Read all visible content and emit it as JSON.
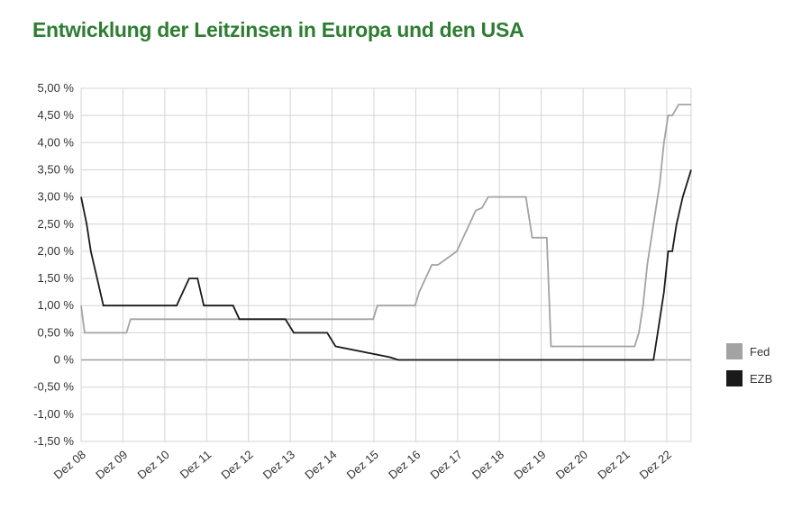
{
  "chart_data": {
    "type": "line",
    "title": "Entwicklung der Leitzinsen in Europa und den USA",
    "xlabel": "",
    "ylabel": "",
    "x_range": [
      2008.917,
      2023.5
    ],
    "ylim": [
      -1.5,
      5.0
    ],
    "y_tick_values": [
      5.0,
      4.5,
      4.0,
      3.5,
      3.0,
      2.5,
      2.0,
      1.5,
      1.0,
      0.5,
      0.0,
      -0.5,
      -1.0,
      -1.5
    ],
    "y_tick_labels": [
      "5,00 %",
      "4,50 %",
      "4,00 %",
      "3,50 %",
      "3,00 %",
      "2,50 %",
      "2,00 %",
      "1,50 %",
      "1,00 %",
      "0,50 %",
      "0 %",
      "-0,50 %",
      "-1,00 %",
      "-1,50 %"
    ],
    "x_tick_values": [
      2008.917,
      2009.917,
      2010.917,
      2011.917,
      2012.917,
      2013.917,
      2014.917,
      2015.917,
      2016.917,
      2017.917,
      2018.917,
      2019.917,
      2020.917,
      2021.917,
      2022.917
    ],
    "x_tick_labels": [
      "Dez 08",
      "Dez 09",
      "Dez 10",
      "Dez 11",
      "Dez 12",
      "Dez 13",
      "Dez 14",
      "Dez 15",
      "Dez 16",
      "Dez 17",
      "Dez 18",
      "Dez 19",
      "Dez 20",
      "Dez 21",
      "Dez 22"
    ],
    "grid": true,
    "legend_position": "right",
    "series": [
      {
        "name": "Fed",
        "color": "#a3a3a3",
        "x": [
          2008.917,
          2009.0,
          2010.0,
          2010.1,
          2015.9,
          2016.0,
          2016.9,
          2017.0,
          2017.15,
          2017.3,
          2017.45,
          2017.9,
          2018.05,
          2018.2,
          2018.35,
          2018.5,
          2018.65,
          2018.9,
          2019.05,
          2019.55,
          2019.7,
          2019.85,
          2020.05,
          2020.15,
          2022.15,
          2022.25,
          2022.35,
          2022.45,
          2022.6,
          2022.75,
          2022.85,
          2022.95,
          2023.05,
          2023.2,
          2023.35,
          2023.5
        ],
        "y": [
          1.0,
          0.5,
          0.5,
          0.75,
          0.75,
          1.0,
          1.0,
          1.25,
          1.5,
          1.75,
          1.75,
          2.0,
          2.25,
          2.5,
          2.75,
          2.8,
          3.0,
          3.0,
          3.0,
          3.0,
          2.25,
          2.25,
          2.25,
          0.25,
          0.25,
          0.5,
          1.0,
          1.75,
          2.5,
          3.25,
          4.0,
          4.5,
          4.5,
          4.7,
          4.7,
          4.7
        ],
        "values": [
          1.0,
          0.5,
          0.5,
          0.75,
          0.75,
          1.0,
          1.0,
          1.25,
          1.5,
          1.75,
          1.75,
          2.0,
          2.25,
          2.5,
          2.75,
          2.8,
          3.0,
          3.0,
          3.0,
          3.0,
          2.25,
          2.25,
          2.25,
          0.25,
          0.25,
          0.5,
          1.0,
          1.75,
          2.5,
          3.25,
          4.0,
          4.5,
          4.5,
          4.7,
          4.7,
          4.7
        ]
      },
      {
        "name": "EZB",
        "color": "#1a1a1a",
        "x": [
          2008.917,
          2009.05,
          2009.15,
          2009.3,
          2009.45,
          2011.2,
          2011.35,
          2011.5,
          2011.7,
          2011.85,
          2012.55,
          2012.7,
          2013.8,
          2014.0,
          2014.8,
          2015.0,
          2016.3,
          2016.5,
          2022.5,
          2022.6,
          2022.7,
          2022.85,
          2022.95,
          2023.05,
          2023.15,
          2023.3,
          2023.5
        ],
        "y": [
          3.0,
          2.5,
          2.0,
          1.5,
          1.0,
          1.0,
          1.25,
          1.5,
          1.5,
          1.0,
          1.0,
          0.75,
          0.75,
          0.5,
          0.5,
          0.25,
          0.05,
          0.0,
          0.0,
          0.0,
          0.5,
          1.25,
          2.0,
          2.0,
          2.5,
          3.0,
          3.5
        ],
        "values": [
          3.0,
          2.5,
          2.0,
          1.5,
          1.0,
          1.0,
          1.25,
          1.5,
          1.5,
          1.0,
          1.0,
          0.75,
          0.75,
          0.5,
          0.5,
          0.25,
          0.05,
          0.0,
          0.0,
          0.0,
          0.5,
          1.25,
          2.0,
          2.0,
          2.5,
          3.0,
          3.5
        ]
      }
    ]
  }
}
